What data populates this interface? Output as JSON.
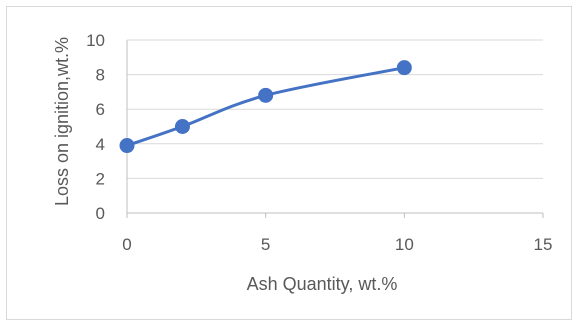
{
  "chart_data": {
    "type": "scatter",
    "title": "",
    "xlabel": "Ash Quantity, wt.%",
    "ylabel": "Loss on ignition,wt.%",
    "xlim": [
      0,
      15
    ],
    "ylim": [
      0,
      10
    ],
    "xticks": [
      "0",
      "5",
      "10",
      "15"
    ],
    "yticks": [
      "0",
      "2",
      "4",
      "6",
      "8",
      "10"
    ],
    "grid": "horizontal",
    "legend": "none",
    "smooth_line": true,
    "color": "#4472c4",
    "series": [
      {
        "x": [
          0,
          2,
          5,
          10
        ],
        "y": [
          3.9,
          5.0,
          6.8,
          8.4
        ]
      }
    ]
  }
}
